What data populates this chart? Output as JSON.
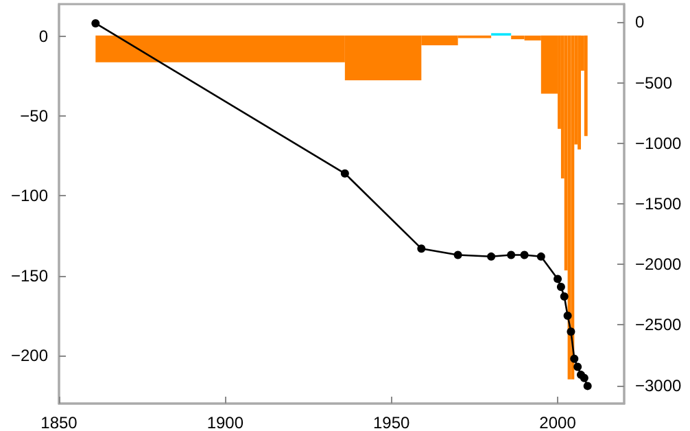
{
  "chart_data": {
    "type": "line",
    "xlim": [
      1850,
      2020
    ],
    "xticks": [
      1850,
      1900,
      1950,
      2000
    ],
    "ylim": [
      -230,
      20
    ],
    "yticks": [
      -200,
      -150,
      -100,
      -50,
      0
    ],
    "y2lim": [
      -3150,
      150
    ],
    "y2ticks": [
      -3000,
      -2500,
      -2000,
      -1500,
      -1000,
      -500,
      0
    ],
    "grid": false,
    "marker": "circle",
    "line_style": "solid",
    "series": [
      {
        "type": "histogram",
        "axis": "y2",
        "bins": [
          1861,
          1936,
          1959,
          1970,
          1980,
          1986,
          1990,
          1995,
          2000,
          2001,
          2002,
          2003,
          2004,
          2005,
          2006,
          2007,
          2008,
          2009
        ],
        "base": [
          -110,
          -110,
          -110,
          -110,
          -110,
          -110,
          -110,
          -110,
          -110,
          -110,
          -110,
          -110,
          -110,
          -110,
          -110,
          -110,
          -110
        ],
        "values": [
          -220,
          -370,
          -80,
          -20,
          20,
          -30,
          -40,
          -480,
          -770,
          -1180,
          -1940,
          -2840,
          -2840,
          -900,
          -940,
          -290,
          -830
        ],
        "colors": [
          "#ff8000",
          "#ff8000",
          "#ff8000",
          "#ff8000",
          "#00e5ff",
          "#ff8000",
          "#ff8000",
          "#ff8000",
          "#ff8000",
          "#ff8000",
          "#ff8000",
          "#ff8000",
          "#ff8000",
          "#ff8000",
          "#ff8000",
          "#ff8000",
          "#ff8000"
        ]
      },
      {
        "color": "#000000",
        "x": [
          1861,
          1936,
          1959,
          1970,
          1980,
          1986,
          1990,
          1995,
          2000,
          2001,
          2002,
          2003,
          2004,
          2005,
          2006,
          2007,
          2008,
          2009
        ],
        "values": [
          8,
          -86,
          -133,
          -137,
          -138,
          -137,
          -137,
          -138,
          -152,
          -157,
          -163,
          -175,
          -185,
          -202,
          -207,
          -212,
          -214,
          -219
        ]
      }
    ]
  }
}
